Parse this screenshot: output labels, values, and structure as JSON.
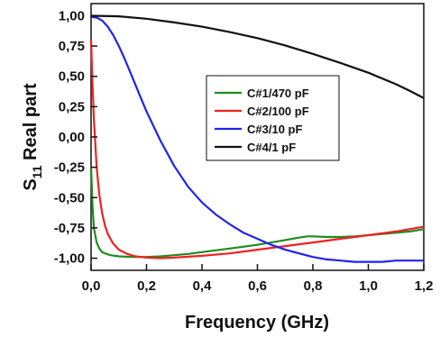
{
  "chart_data": {
    "type": "line",
    "title": "",
    "xlabel": "Frequency (GHz)",
    "ylabel": {
      "prefix": "S",
      "subscript": "11",
      "suffix": " Real part"
    },
    "xlim": [
      0.0,
      1.2
    ],
    "ylim": [
      -1.1,
      1.1
    ],
    "xticks": [
      "0,0",
      "0,2",
      "0,4",
      "0,6",
      "0,8",
      "1,0",
      "1,2"
    ],
    "xtick_values": [
      0.0,
      0.2,
      0.4,
      0.6,
      0.8,
      1.0,
      1.2
    ],
    "yticks": [
      "1,00",
      "0,75",
      "0,50",
      "0,25",
      "0,00",
      "-0,25",
      "-0,50",
      "-0,75",
      "-1,00"
    ],
    "ytick_values": [
      1.0,
      0.75,
      0.5,
      0.25,
      0.0,
      -0.25,
      -0.5,
      -0.75,
      -1.0
    ],
    "grid": false,
    "legend_position": "center-right",
    "series": [
      {
        "name": "C#1/470 pF",
        "color": "#1e8c1e",
        "x": [
          0.0,
          0.005,
          0.01,
          0.02,
          0.03,
          0.04,
          0.05,
          0.07,
          0.1,
          0.15,
          0.2,
          0.25,
          0.3,
          0.35,
          0.4,
          0.5,
          0.6,
          0.7,
          0.75,
          0.78,
          0.8,
          0.85,
          0.9,
          0.95,
          1.0,
          1.05,
          1.1,
          1.15,
          1.2
        ],
        "y": [
          -0.25,
          -0.55,
          -0.75,
          -0.87,
          -0.92,
          -0.95,
          -0.96,
          -0.975,
          -0.985,
          -0.99,
          -0.99,
          -0.985,
          -0.975,
          -0.965,
          -0.95,
          -0.92,
          -0.89,
          -0.85,
          -0.83,
          -0.82,
          -0.82,
          -0.825,
          -0.825,
          -0.82,
          -0.81,
          -0.8,
          -0.79,
          -0.78,
          -0.76
        ]
      },
      {
        "name": "C#2/100 pF",
        "color": "#ee2222",
        "x": [
          0.0,
          0.005,
          0.01,
          0.02,
          0.03,
          0.04,
          0.05,
          0.06,
          0.08,
          0.1,
          0.13,
          0.16,
          0.2,
          0.25,
          0.3,
          0.4,
          0.5,
          0.6,
          0.7,
          0.8,
          0.9,
          1.0,
          1.1,
          1.2
        ],
        "y": [
          0.8,
          0.45,
          0.15,
          -0.25,
          -0.48,
          -0.63,
          -0.73,
          -0.8,
          -0.88,
          -0.93,
          -0.965,
          -0.985,
          -0.995,
          -1.0,
          -0.995,
          -0.98,
          -0.96,
          -0.93,
          -0.9,
          -0.87,
          -0.84,
          -0.81,
          -0.78,
          -0.74
        ]
      },
      {
        "name": "C#3/10 pF",
        "color": "#2222ee",
        "x": [
          0.0,
          0.02,
          0.04,
          0.06,
          0.08,
          0.1,
          0.12,
          0.14,
          0.16,
          0.18,
          0.2,
          0.25,
          0.3,
          0.35,
          0.4,
          0.45,
          0.5,
          0.55,
          0.6,
          0.65,
          0.7,
          0.75,
          0.8,
          0.85,
          0.9,
          0.95,
          1.0,
          1.05,
          1.1,
          1.15,
          1.2
        ],
        "y": [
          0.99,
          0.985,
          0.96,
          0.91,
          0.84,
          0.75,
          0.65,
          0.54,
          0.43,
          0.32,
          0.21,
          -0.03,
          -0.24,
          -0.41,
          -0.54,
          -0.64,
          -0.72,
          -0.79,
          -0.84,
          -0.89,
          -0.93,
          -0.96,
          -0.99,
          -1.01,
          -1.02,
          -1.03,
          -1.03,
          -1.03,
          -1.02,
          -1.02,
          -1.02
        ]
      },
      {
        "name": "C#4/1 pF",
        "color": "#111111",
        "x": [
          0.0,
          0.1,
          0.2,
          0.3,
          0.4,
          0.5,
          0.6,
          0.7,
          0.8,
          0.9,
          1.0,
          1.1,
          1.15,
          1.2
        ],
        "y": [
          1.0,
          0.995,
          0.975,
          0.945,
          0.91,
          0.865,
          0.815,
          0.755,
          0.685,
          0.61,
          0.53,
          0.435,
          0.38,
          0.32
        ]
      }
    ]
  }
}
